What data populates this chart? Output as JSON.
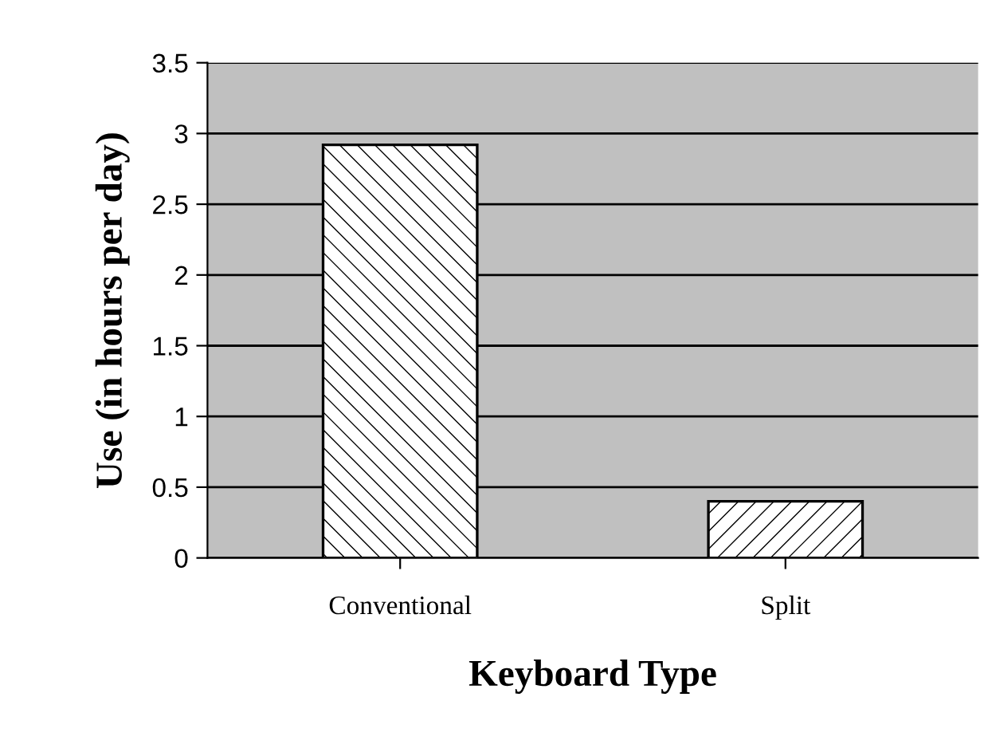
{
  "chart_data": {
    "type": "bar",
    "categories": [
      "Conventional",
      "Split"
    ],
    "values": [
      2.92,
      0.4
    ],
    "colors": [
      "#000000",
      "#000000"
    ],
    "xlabel": "Keyboard Type",
    "ylabel": "Use (in hours per day)",
    "ylim": [
      0,
      3.5
    ],
    "yticks": [
      0,
      0.5,
      1,
      1.5,
      2,
      2.5,
      3,
      3.5
    ],
    "grid": "y",
    "legend": false
  }
}
